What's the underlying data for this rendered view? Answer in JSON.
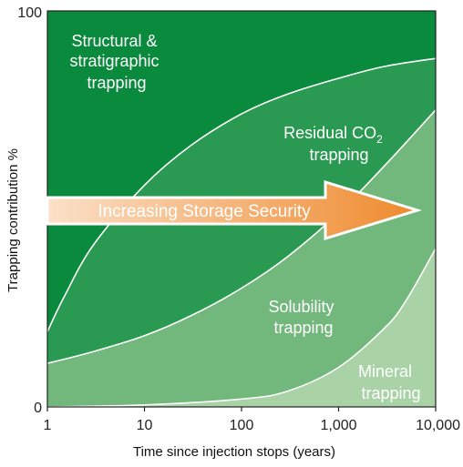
{
  "chart_data": {
    "type": "area",
    "title": "",
    "xlabel": "Time since injection stops (years)",
    "ylabel": "Trapping contribution %",
    "xscale": "log",
    "xlim": [
      1,
      10000
    ],
    "ylim": [
      0,
      100
    ],
    "x_ticks": [
      "1",
      "10",
      "100",
      "1,000",
      "10,000"
    ],
    "y_ticks": [
      "0",
      "100"
    ],
    "boundaries": [
      {
        "name": "structural-residual",
        "x": [
          1,
          1.5,
          3,
          10,
          30,
          100,
          300,
          1000,
          3000,
          10000
        ],
        "y": [
          19,
          28,
          41,
          56,
          66,
          74,
          79,
          83,
          86,
          88
        ]
      },
      {
        "name": "residual-solubility",
        "x": [
          1,
          3,
          10,
          30,
          100,
          300,
          1000,
          3000,
          10000
        ],
        "y": [
          11,
          14,
          18,
          23,
          30,
          38,
          49,
          61,
          75
        ]
      },
      {
        "name": "solubility-mineral",
        "x": [
          1,
          10,
          100,
          300,
          1000,
          3000,
          5000,
          10000
        ],
        "y": [
          0,
          0.5,
          2,
          4,
          10,
          20,
          27,
          40
        ]
      }
    ],
    "regions": [
      {
        "label_lines": [
          "Structural &",
          "stratigraphic",
          "trapping"
        ],
        "color": "#0a8a3c"
      },
      {
        "label_lines": [
          "Residual CO",
          "trapping"
        ],
        "subscript": "2",
        "color": "#2a9a52"
      },
      {
        "label_lines": [
          "Solubility",
          "trapping"
        ],
        "color": "#72b87c"
      },
      {
        "label_lines": [
          "Mineral",
          "trapping"
        ],
        "color": "#a9d3a7"
      }
    ],
    "annotation": {
      "text": "Increasing Storage Security",
      "gradient": [
        "#fbe0c8",
        "#ef8a2e"
      ],
      "outline": "#ffffff"
    },
    "grid": false,
    "legend": "none"
  }
}
